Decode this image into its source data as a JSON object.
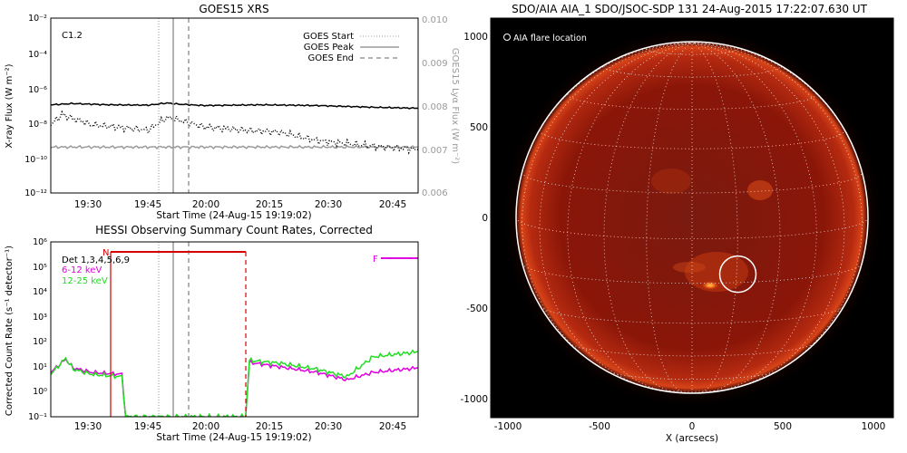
{
  "colors": {
    "goes_primary": "#000000",
    "goes_secondary": "#000000",
    "goes_lyman": "#9a9a9a",
    "peak_line": "#9a9a9a",
    "detail_line": "#9a9a9a",
    "hessi_red": "#d40000",
    "hessi_magenta": "#e000e0",
    "hessi_green": "#22dd22",
    "sun_disk": "#8a1405",
    "sun_limb": "#ffffff"
  },
  "chart_data": [
    {
      "type": "line",
      "title": "GOES15 XRS",
      "xlabel": "Start Time (24-Aug-15 19:19:02)",
      "ylabel": "X-ray Flux (W m⁻²)",
      "y2label": "GOES15 Lyα Flux (W m⁻²)",
      "x_ticks": [
        "19:30",
        "19:45",
        "20:00",
        "20:15",
        "20:30",
        "20:45"
      ],
      "y_ticks": [
        "10⁻²",
        "10⁻⁴",
        "10⁻⁶",
        "10⁻⁸",
        "10⁻¹⁰",
        "10⁻¹²"
      ],
      "y2_ticks": [
        "0.010",
        "0.009",
        "0.008",
        "0.007",
        "0.006"
      ],
      "xlim": [
        "19:19:02",
        "20:57:00"
      ],
      "ylim": [
        1e-12,
        0.01
      ],
      "y2lim": [
        0.006,
        0.01
      ],
      "yscale": "log",
      "flare_class": "C1.2",
      "legend": [
        "GOES Start",
        "GOES Peak",
        "GOES End"
      ],
      "legend_position": "top-right",
      "events": {
        "start": "19:48:00",
        "peak": "19:52:00",
        "end": "19:56:00"
      },
      "series": [
        {
          "x": [
            "19:19",
            "19:25",
            "19:35",
            "19:45",
            "19:50",
            "19:53",
            "20:00",
            "20:15",
            "20:30",
            "20:45",
            "20:57"
          ],
          "values": [
            1.1e-07,
            1.3e-07,
            1.1e-07,
            1.05e-07,
            1.4e-07,
            1.2e-07,
            1e-07,
            1.1e-07,
            1e-07,
            8e-08,
            7e-08
          ]
        },
        {
          "x": [
            "19:19",
            "19:22",
            "19:30",
            "19:40",
            "19:45",
            "19:50",
            "19:53",
            "20:00",
            "20:10",
            "20:20",
            "20:30",
            "20:40",
            "20:50",
            "20:57"
          ],
          "values": [
            8e-09,
            3e-08,
            8e-09,
            5e-09,
            4e-09,
            2e-08,
            1.5e-08,
            6e-09,
            4e-09,
            3e-09,
            1e-09,
            6e-10,
            4e-10,
            3e-10
          ]
        },
        {
          "x": [
            "19:19",
            "19:40",
            "20:00",
            "20:20",
            "20:40",
            "20:57"
          ],
          "values": [
            0.00705,
            0.00705,
            0.00705,
            0.00705,
            0.00705,
            0.00705
          ]
        }
      ]
    },
    {
      "type": "line",
      "title": "HESSI Observing Summary Count Rates, Corrected",
      "xlabel": "Start Time (24-Aug-15 19:19:02)",
      "ylabel": "Corrected Count Rate (s⁻¹ detector⁻¹)",
      "x_ticks": [
        "19:30",
        "19:45",
        "20:00",
        "20:15",
        "20:30",
        "20:45"
      ],
      "y_ticks": [
        "10⁶",
        "10⁵",
        "10⁴",
        "10³",
        "10²",
        "10¹",
        "10⁰",
        "10⁻¹"
      ],
      "xlim": [
        "19:19:02",
        "20:57:00"
      ],
      "ylim": [
        0.1,
        1000000.0
      ],
      "yscale": "log",
      "legend": [
        "Det 1,3,4,5,6,9",
        "6-12 keV",
        "12-25 keV"
      ],
      "legend_position": "top-left",
      "annotations": [
        "N",
        "F"
      ],
      "series": [
        {
          "name": "6-12 keV",
          "x": [
            "19:19",
            "19:23",
            "19:25",
            "19:30",
            "19:38",
            "19:39",
            "20:11",
            "20:12",
            "20:20",
            "20:30",
            "20:38",
            "20:45",
            "20:57"
          ],
          "values": [
            6,
            20,
            9,
            6,
            5,
            0.1,
            0.1,
            15,
            10,
            6,
            3,
            6,
            9
          ]
        },
        {
          "name": "12-25 keV",
          "x": [
            "19:19",
            "19:23",
            "19:25",
            "19:30",
            "19:38",
            "19:39",
            "20:11",
            "20:12",
            "20:20",
            "20:30",
            "20:38",
            "20:45",
            "20:57"
          ],
          "values": [
            5,
            22,
            8,
            5,
            4,
            0.1,
            0.1,
            18,
            14,
            8,
            4,
            25,
            40
          ]
        }
      ]
    },
    {
      "type": "heatmap",
      "title": "SDO/AIA AIA_1 SDO/JSOC-SDP 131 24-Aug-2015 17:22:07.630 UT",
      "xlabel": "X (arcsecs)",
      "x_ticks": [
        "-1000",
        "-500",
        "0",
        "500",
        "1000"
      ],
      "y_ticks": [
        "1000",
        "500",
        "0",
        "-500",
        "-1000"
      ],
      "xlim": [
        -1100,
        1100
      ],
      "ylim": [
        -1100,
        1100
      ],
      "legend": [
        "AIA flare location"
      ],
      "flare_location": {
        "x": 250,
        "y": -310
      }
    }
  ]
}
